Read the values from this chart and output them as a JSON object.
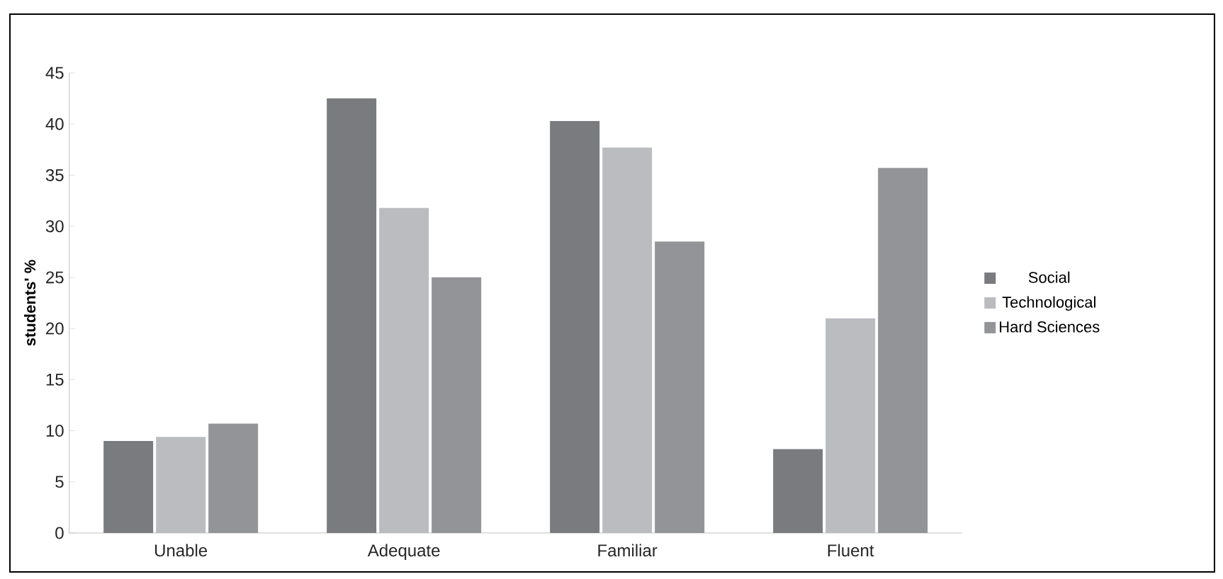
{
  "chart_data": {
    "type": "bar",
    "ylabel": "students' %",
    "categories": [
      "Unable",
      "Adequate",
      "Familiar",
      "Fluent"
    ],
    "series": [
      {
        "name": "Social",
        "color": "#7a7b7f",
        "values": [
          9.0,
          42.5,
          40.3,
          8.2
        ]
      },
      {
        "name": "Technological",
        "color": "#bbbcc0",
        "values": [
          9.4,
          31.8,
          37.7,
          21.0
        ]
      },
      {
        "name": "Hard Sciences",
        "color": "#939498",
        "values": [
          10.7,
          25.0,
          28.5,
          35.7
        ]
      }
    ],
    "ylim": [
      0,
      45
    ],
    "yticks": [
      0,
      5,
      10,
      15,
      20,
      25,
      30,
      35,
      40,
      45
    ],
    "grid": false,
    "legend": "right"
  }
}
